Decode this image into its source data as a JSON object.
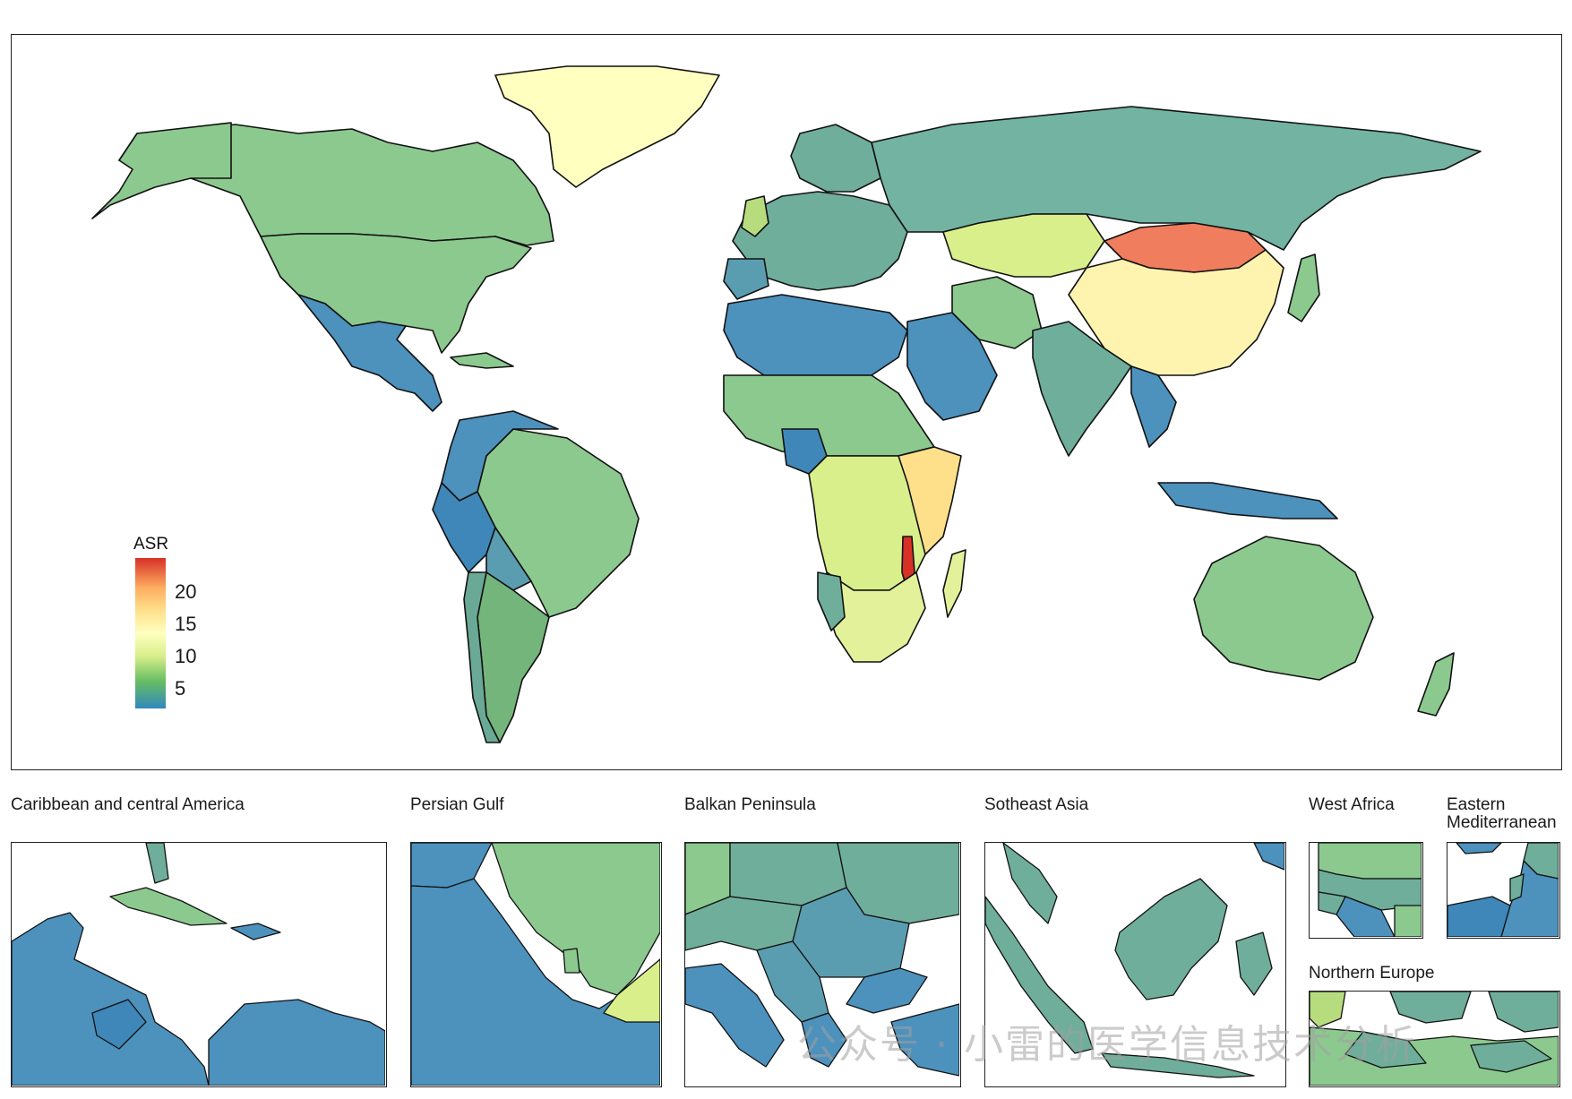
{
  "legend": {
    "title": "ASR",
    "ticks": [
      "20",
      "15",
      "10",
      "5"
    ],
    "colors": {
      "max": "#d73027",
      "high": "#f46d43",
      "upper": "#fdae61",
      "mid_high": "#fee08b",
      "mid": "#ffffbf",
      "mid_low": "#d9ef8b",
      "low": "#91cf60",
      "lower": "#66bd63",
      "min": "#3288bd"
    }
  },
  "insets": {
    "caribbean": "Caribbean and central America",
    "persian_gulf": "Persian Gulf",
    "balkan": "Balkan Peninsula",
    "se_asia": "Sotheast Asia",
    "west_africa": "West Africa",
    "east_med": "Eastern\nMediterranean",
    "northern_europe": "Northern Europe"
  },
  "watermark": "公众号 · 小雷的医学信息技术分析"
}
